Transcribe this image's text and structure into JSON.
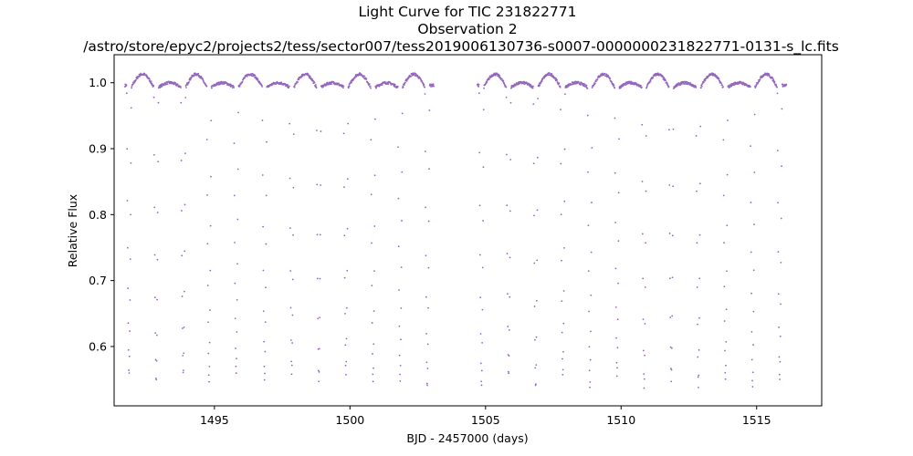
{
  "chart_data": {
    "type": "scatter",
    "title_lines": [
      "Light Curve for TIC 231822771",
      "Observation 2",
      "/astro/store/epyc2/projects2/tess/sector007/tess2019006130736-s0007-0000000231822771-0131-s_lc.fits"
    ],
    "xlabel": "BJD - 2457000 (days)",
    "ylabel": "Relative Flux",
    "xlim": [
      1491.3,
      1517.4
    ],
    "ylim": [
      0.51,
      1.0425
    ],
    "xticks": [
      1495,
      1500,
      1505,
      1510,
      1515
    ],
    "xtick_labels": [
      "1495",
      "1500",
      "1505",
      "1510",
      "1515"
    ],
    "yticks": [
      0.6,
      0.7,
      0.8,
      0.9,
      1.0
    ],
    "ytick_labels": [
      "0.6",
      "0.7",
      "0.8",
      "0.9",
      "1.0"
    ],
    "grid": false,
    "marker_color": "#9467bd",
    "segments": [
      [
        1491.7,
        1503.1
      ],
      [
        1504.7,
        1516.1
      ]
    ],
    "eclipse_centers": [
      1491.85,
      1492.85,
      1493.85,
      1494.8,
      1495.8,
      1496.85,
      1497.85,
      1498.85,
      1499.85,
      1500.85,
      1501.85,
      1502.85,
      1504.85,
      1505.85,
      1506.85,
      1507.85,
      1508.85,
      1509.85,
      1510.85,
      1511.85,
      1512.85,
      1513.85,
      1514.85,
      1515.85
    ],
    "eclipse_min_flux": [
      0.557,
      0.547,
      0.557,
      0.546,
      0.559,
      0.547,
      0.557,
      0.546,
      0.557,
      0.546,
      0.547,
      0.537,
      0.537,
      0.555,
      0.537,
      0.555,
      0.537,
      0.555,
      0.537,
      0.548,
      0.537,
      0.548,
      0.537,
      0.548
    ],
    "eclipse_half_width_days": 0.085,
    "baseline_flux": 0.993,
    "bump_amplitude": 0.02
  }
}
